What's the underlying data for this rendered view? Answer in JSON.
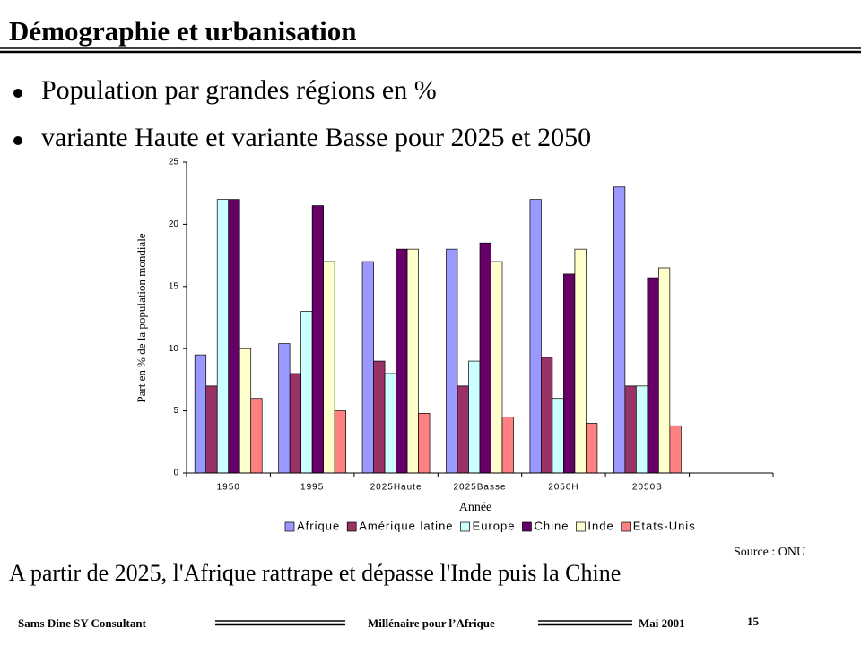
{
  "slide_title": "Démographie et urbanisation",
  "bullets": [
    "Population par grandes régions en %",
    "variante Haute et variante Basse pour 2025 et 2050"
  ],
  "chart_data": {
    "type": "bar",
    "categories": [
      "1950",
      "1995",
      "2025Haute",
      "2025Basse",
      "2050H",
      "2050B",
      null
    ],
    "series": [
      {
        "name": "Afrique",
        "color": "#9999ff",
        "values": [
          9.5,
          10.4,
          17,
          18,
          22,
          23,
          null
        ]
      },
      {
        "name": "Amérique latine",
        "color": "#993366",
        "values": [
          7,
          8,
          9,
          7,
          9.3,
          7,
          null
        ]
      },
      {
        "name": "Europe",
        "color": "#ccffff",
        "values": [
          22,
          13,
          8,
          9,
          6,
          7,
          null
        ]
      },
      {
        "name": "Chine",
        "color": "#660066",
        "values": [
          22,
          21.5,
          18,
          18.5,
          16,
          15.7,
          null
        ]
      },
      {
        "name": "Inde",
        "color": "#ffffcc",
        "values": [
          10,
          17,
          18,
          17,
          18,
          16.5,
          null
        ]
      },
      {
        "name": "Etats-Unis",
        "color": "#ff8080",
        "values": [
          6,
          5,
          4.8,
          4.5,
          4,
          3.8,
          null
        ]
      }
    ],
    "ylim": [
      0,
      25
    ],
    "yticks": [
      0,
      5,
      10,
      15,
      20,
      25
    ],
    "ylabel": "Part en % de la population mondiale",
    "xlabel": "Année",
    "legend": "bottom"
  },
  "source": "Source : ONU",
  "conclusion": "A partir de 2025, l'Afrique rattrape et dépasse l'Inde puis la Chine",
  "footer": {
    "author": "Sams Dine SY Consultant",
    "event": "Millénaire pour l’Afrique",
    "date": "Mai 2001",
    "page": "15"
  }
}
